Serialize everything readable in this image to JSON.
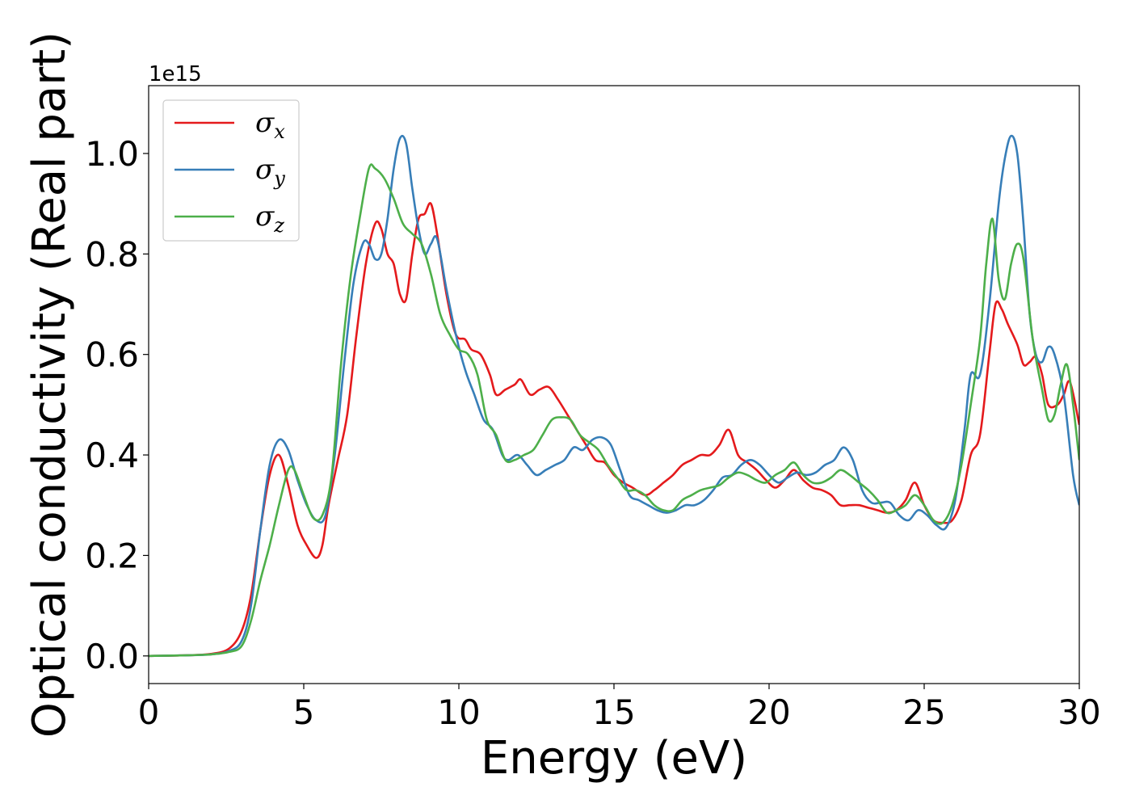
{
  "chart_data": {
    "type": "line",
    "xlabel": "Energy (eV)",
    "ylabel": "Optical conductivity (Real part)",
    "offset_text": "1e15",
    "xlim": [
      0,
      30
    ],
    "ylim": [
      -0.055,
      1.135
    ],
    "x_ticks": [
      0,
      5,
      10,
      15,
      20,
      25,
      30
    ],
    "y_ticks": [
      0.0,
      0.2,
      0.4,
      0.6,
      0.8,
      1.0
    ],
    "x_tick_labels": [
      "0",
      "5",
      "10",
      "15",
      "20",
      "25",
      "30"
    ],
    "y_tick_labels": [
      "0.0",
      "0.2",
      "0.4",
      "0.6",
      "0.8",
      "1.0"
    ],
    "grid": false,
    "legend_position": "top-left",
    "series": [
      {
        "name": "σx",
        "symbol": "σ",
        "subscript": "x",
        "color": "#e41a1c",
        "points": [
          [
            0,
            0
          ],
          [
            1,
            0.001
          ],
          [
            2,
            0.004
          ],
          [
            2.6,
            0.015
          ],
          [
            3.0,
            0.05
          ],
          [
            3.3,
            0.12
          ],
          [
            3.6,
            0.25
          ],
          [
            3.9,
            0.36
          ],
          [
            4.2,
            0.4
          ],
          [
            4.5,
            0.34
          ],
          [
            4.8,
            0.26
          ],
          [
            5.1,
            0.22
          ],
          [
            5.4,
            0.195
          ],
          [
            5.6,
            0.22
          ],
          [
            5.8,
            0.3
          ],
          [
            6.1,
            0.39
          ],
          [
            6.4,
            0.48
          ],
          [
            6.7,
            0.64
          ],
          [
            7.0,
            0.78
          ],
          [
            7.3,
            0.86
          ],
          [
            7.5,
            0.85
          ],
          [
            7.7,
            0.8
          ],
          [
            7.9,
            0.78
          ],
          [
            8.1,
            0.72
          ],
          [
            8.3,
            0.71
          ],
          [
            8.5,
            0.8
          ],
          [
            8.7,
            0.87
          ],
          [
            8.9,
            0.88
          ],
          [
            9.1,
            0.9
          ],
          [
            9.3,
            0.84
          ],
          [
            9.6,
            0.72
          ],
          [
            9.9,
            0.64
          ],
          [
            10.2,
            0.63
          ],
          [
            10.4,
            0.61
          ],
          [
            10.7,
            0.6
          ],
          [
            11.0,
            0.56
          ],
          [
            11.2,
            0.52
          ],
          [
            11.5,
            0.53
          ],
          [
            11.8,
            0.54
          ],
          [
            12.0,
            0.55
          ],
          [
            12.3,
            0.52
          ],
          [
            12.6,
            0.53
          ],
          [
            12.9,
            0.535
          ],
          [
            13.2,
            0.51
          ],
          [
            13.5,
            0.48
          ],
          [
            13.8,
            0.45
          ],
          [
            14.1,
            0.42
          ],
          [
            14.4,
            0.39
          ],
          [
            14.7,
            0.385
          ],
          [
            15.0,
            0.36
          ],
          [
            15.3,
            0.345
          ],
          [
            15.6,
            0.335
          ],
          [
            16.0,
            0.32
          ],
          [
            16.3,
            0.33
          ],
          [
            16.6,
            0.345
          ],
          [
            16.9,
            0.36
          ],
          [
            17.2,
            0.38
          ],
          [
            17.5,
            0.39
          ],
          [
            17.8,
            0.4
          ],
          [
            18.1,
            0.4
          ],
          [
            18.4,
            0.42
          ],
          [
            18.7,
            0.45
          ],
          [
            19.0,
            0.4
          ],
          [
            19.3,
            0.385
          ],
          [
            19.6,
            0.37
          ],
          [
            19.9,
            0.35
          ],
          [
            20.2,
            0.335
          ],
          [
            20.5,
            0.35
          ],
          [
            20.8,
            0.37
          ],
          [
            21.1,
            0.35
          ],
          [
            21.4,
            0.335
          ],
          [
            21.7,
            0.33
          ],
          [
            22.0,
            0.32
          ],
          [
            22.3,
            0.3
          ],
          [
            22.6,
            0.3
          ],
          [
            22.9,
            0.3
          ],
          [
            23.2,
            0.295
          ],
          [
            23.5,
            0.29
          ],
          [
            23.8,
            0.285
          ],
          [
            24.1,
            0.29
          ],
          [
            24.4,
            0.31
          ],
          [
            24.7,
            0.345
          ],
          [
            25.0,
            0.3
          ],
          [
            25.3,
            0.27
          ],
          [
            25.6,
            0.265
          ],
          [
            25.9,
            0.27
          ],
          [
            26.2,
            0.31
          ],
          [
            26.5,
            0.4
          ],
          [
            26.8,
            0.44
          ],
          [
            27.1,
            0.6
          ],
          [
            27.3,
            0.7
          ],
          [
            27.5,
            0.69
          ],
          [
            27.7,
            0.66
          ],
          [
            28.0,
            0.62
          ],
          [
            28.2,
            0.58
          ],
          [
            28.4,
            0.585
          ],
          [
            28.6,
            0.595
          ],
          [
            28.8,
            0.56
          ],
          [
            29.0,
            0.5
          ],
          [
            29.3,
            0.5
          ],
          [
            29.5,
            0.52
          ],
          [
            29.7,
            0.545
          ],
          [
            30.0,
            0.46
          ]
        ]
      },
      {
        "name": "σy",
        "symbol": "σ",
        "subscript": "y",
        "color": "#377eb8",
        "points": [
          [
            0,
            0
          ],
          [
            1,
            0.001
          ],
          [
            2,
            0.003
          ],
          [
            2.6,
            0.01
          ],
          [
            3.0,
            0.03
          ],
          [
            3.3,
            0.1
          ],
          [
            3.6,
            0.25
          ],
          [
            3.9,
            0.38
          ],
          [
            4.2,
            0.43
          ],
          [
            4.5,
            0.41
          ],
          [
            4.8,
            0.35
          ],
          [
            5.1,
            0.3
          ],
          [
            5.4,
            0.27
          ],
          [
            5.7,
            0.28
          ],
          [
            6.0,
            0.4
          ],
          [
            6.3,
            0.58
          ],
          [
            6.6,
            0.74
          ],
          [
            6.9,
            0.82
          ],
          [
            7.1,
            0.82
          ],
          [
            7.3,
            0.79
          ],
          [
            7.5,
            0.8
          ],
          [
            7.7,
            0.87
          ],
          [
            7.9,
            0.97
          ],
          [
            8.1,
            1.03
          ],
          [
            8.3,
            1.02
          ],
          [
            8.5,
            0.93
          ],
          [
            8.7,
            0.85
          ],
          [
            8.9,
            0.8
          ],
          [
            9.1,
            0.82
          ],
          [
            9.3,
            0.83
          ],
          [
            9.6,
            0.73
          ],
          [
            9.9,
            0.64
          ],
          [
            10.2,
            0.57
          ],
          [
            10.5,
            0.52
          ],
          [
            10.8,
            0.47
          ],
          [
            11.1,
            0.45
          ],
          [
            11.4,
            0.4
          ],
          [
            11.6,
            0.39
          ],
          [
            11.9,
            0.4
          ],
          [
            12.2,
            0.38
          ],
          [
            12.5,
            0.36
          ],
          [
            12.8,
            0.37
          ],
          [
            13.1,
            0.38
          ],
          [
            13.4,
            0.39
          ],
          [
            13.7,
            0.415
          ],
          [
            14.0,
            0.41
          ],
          [
            14.3,
            0.43
          ],
          [
            14.6,
            0.435
          ],
          [
            14.9,
            0.42
          ],
          [
            15.2,
            0.37
          ],
          [
            15.5,
            0.32
          ],
          [
            15.8,
            0.31
          ],
          [
            16.1,
            0.3
          ],
          [
            16.4,
            0.29
          ],
          [
            16.7,
            0.285
          ],
          [
            17.0,
            0.29
          ],
          [
            17.3,
            0.3
          ],
          [
            17.6,
            0.3
          ],
          [
            17.9,
            0.31
          ],
          [
            18.2,
            0.33
          ],
          [
            18.5,
            0.355
          ],
          [
            18.8,
            0.36
          ],
          [
            19.1,
            0.38
          ],
          [
            19.4,
            0.39
          ],
          [
            19.7,
            0.38
          ],
          [
            20.0,
            0.36
          ],
          [
            20.3,
            0.345
          ],
          [
            20.6,
            0.355
          ],
          [
            20.9,
            0.365
          ],
          [
            21.2,
            0.36
          ],
          [
            21.5,
            0.365
          ],
          [
            21.8,
            0.38
          ],
          [
            22.1,
            0.39
          ],
          [
            22.4,
            0.415
          ],
          [
            22.7,
            0.39
          ],
          [
            23.0,
            0.33
          ],
          [
            23.3,
            0.305
          ],
          [
            23.6,
            0.305
          ],
          [
            23.9,
            0.305
          ],
          [
            24.2,
            0.28
          ],
          [
            24.5,
            0.27
          ],
          [
            24.8,
            0.29
          ],
          [
            25.1,
            0.28
          ],
          [
            25.4,
            0.26
          ],
          [
            25.7,
            0.255
          ],
          [
            26.0,
            0.31
          ],
          [
            26.3,
            0.45
          ],
          [
            26.5,
            0.56
          ],
          [
            26.8,
            0.56
          ],
          [
            27.1,
            0.7
          ],
          [
            27.4,
            0.9
          ],
          [
            27.6,
            0.99
          ],
          [
            27.8,
            1.035
          ],
          [
            28.0,
            1.0
          ],
          [
            28.2,
            0.86
          ],
          [
            28.4,
            0.68
          ],
          [
            28.6,
            0.6
          ],
          [
            28.8,
            0.585
          ],
          [
            29.0,
            0.615
          ],
          [
            29.2,
            0.6
          ],
          [
            29.5,
            0.52
          ],
          [
            29.8,
            0.36
          ],
          [
            30.0,
            0.3
          ]
        ]
      },
      {
        "name": "σz",
        "symbol": "σ",
        "subscript": "z",
        "color": "#4daf4a",
        "points": [
          [
            0,
            0
          ],
          [
            1,
            0.001
          ],
          [
            2,
            0.003
          ],
          [
            2.6,
            0.008
          ],
          [
            3.0,
            0.02
          ],
          [
            3.3,
            0.07
          ],
          [
            3.6,
            0.15
          ],
          [
            3.9,
            0.22
          ],
          [
            4.2,
            0.3
          ],
          [
            4.5,
            0.37
          ],
          [
            4.7,
            0.37
          ],
          [
            5.0,
            0.32
          ],
          [
            5.3,
            0.275
          ],
          [
            5.6,
            0.28
          ],
          [
            5.9,
            0.36
          ],
          [
            6.2,
            0.58
          ],
          [
            6.5,
            0.75
          ],
          [
            6.8,
            0.87
          ],
          [
            7.1,
            0.97
          ],
          [
            7.3,
            0.97
          ],
          [
            7.6,
            0.95
          ],
          [
            7.9,
            0.91
          ],
          [
            8.2,
            0.86
          ],
          [
            8.5,
            0.84
          ],
          [
            8.8,
            0.82
          ],
          [
            9.1,
            0.76
          ],
          [
            9.4,
            0.68
          ],
          [
            9.7,
            0.64
          ],
          [
            10.0,
            0.61
          ],
          [
            10.3,
            0.6
          ],
          [
            10.6,
            0.56
          ],
          [
            10.9,
            0.47
          ],
          [
            11.2,
            0.44
          ],
          [
            11.5,
            0.39
          ],
          [
            11.8,
            0.39
          ],
          [
            12.1,
            0.4
          ],
          [
            12.4,
            0.41
          ],
          [
            12.7,
            0.44
          ],
          [
            13.0,
            0.47
          ],
          [
            13.3,
            0.475
          ],
          [
            13.6,
            0.47
          ],
          [
            13.9,
            0.44
          ],
          [
            14.2,
            0.425
          ],
          [
            14.5,
            0.41
          ],
          [
            14.8,
            0.38
          ],
          [
            15.1,
            0.355
          ],
          [
            15.4,
            0.33
          ],
          [
            15.7,
            0.33
          ],
          [
            16.0,
            0.32
          ],
          [
            16.3,
            0.3
          ],
          [
            16.6,
            0.29
          ],
          [
            16.9,
            0.29
          ],
          [
            17.2,
            0.31
          ],
          [
            17.5,
            0.32
          ],
          [
            17.8,
            0.33
          ],
          [
            18.1,
            0.335
          ],
          [
            18.4,
            0.34
          ],
          [
            18.7,
            0.355
          ],
          [
            19.0,
            0.365
          ],
          [
            19.3,
            0.36
          ],
          [
            19.6,
            0.35
          ],
          [
            19.9,
            0.345
          ],
          [
            20.2,
            0.36
          ],
          [
            20.5,
            0.37
          ],
          [
            20.8,
            0.385
          ],
          [
            21.1,
            0.36
          ],
          [
            21.4,
            0.345
          ],
          [
            21.7,
            0.345
          ],
          [
            22.0,
            0.355
          ],
          [
            22.3,
            0.37
          ],
          [
            22.6,
            0.36
          ],
          [
            22.9,
            0.345
          ],
          [
            23.2,
            0.33
          ],
          [
            23.5,
            0.31
          ],
          [
            23.8,
            0.285
          ],
          [
            24.1,
            0.29
          ],
          [
            24.4,
            0.3
          ],
          [
            24.7,
            0.32
          ],
          [
            25.0,
            0.3
          ],
          [
            25.3,
            0.27
          ],
          [
            25.6,
            0.265
          ],
          [
            25.9,
            0.3
          ],
          [
            26.2,
            0.38
          ],
          [
            26.5,
            0.5
          ],
          [
            26.8,
            0.63
          ],
          [
            27.0,
            0.78
          ],
          [
            27.2,
            0.87
          ],
          [
            27.4,
            0.75
          ],
          [
            27.6,
            0.71
          ],
          [
            27.8,
            0.78
          ],
          [
            28.0,
            0.82
          ],
          [
            28.2,
            0.79
          ],
          [
            28.5,
            0.63
          ],
          [
            28.8,
            0.53
          ],
          [
            29.0,
            0.47
          ],
          [
            29.2,
            0.48
          ],
          [
            29.4,
            0.54
          ],
          [
            29.6,
            0.58
          ],
          [
            29.8,
            0.5
          ],
          [
            30.0,
            0.39
          ]
        ]
      }
    ]
  }
}
